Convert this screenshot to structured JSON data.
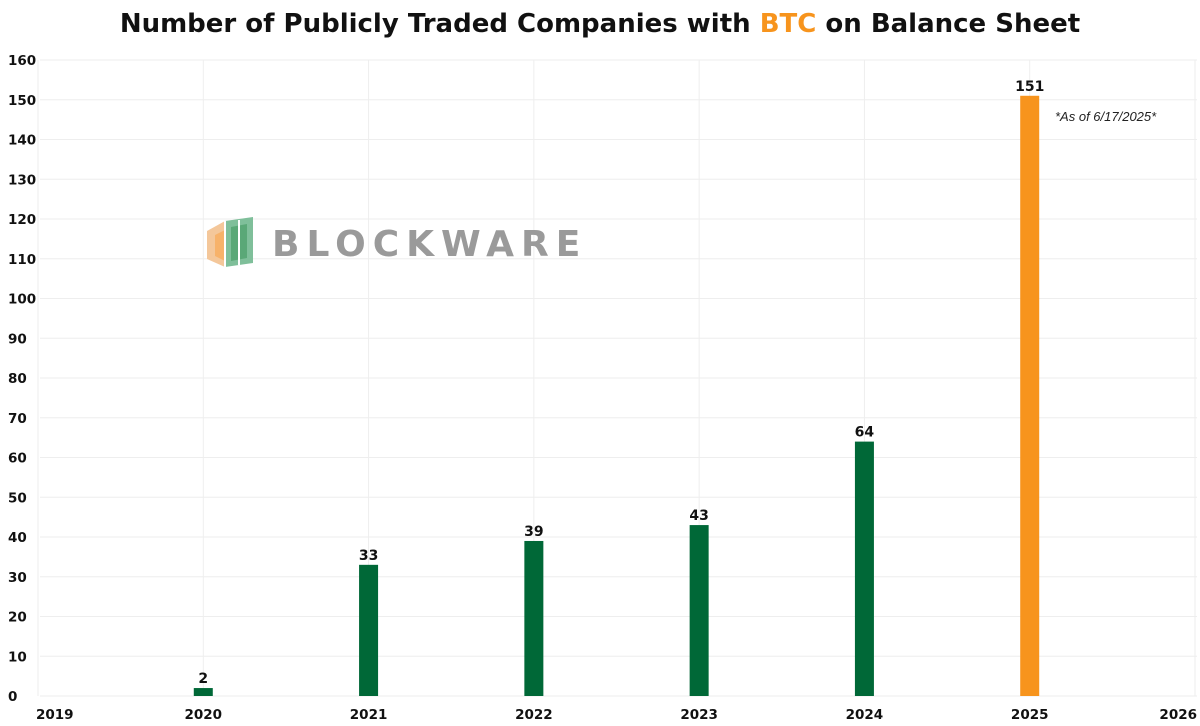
{
  "colors": {
    "bar": "#006837",
    "highlight": "#f7941d",
    "title": "#111111",
    "grid": "#eeeeee",
    "watermark_text": "#9a9a9a"
  },
  "watermark": {
    "text": "BLOCKWARE",
    "icon": "blockware-logo-icon"
  },
  "chart_data": {
    "type": "bar",
    "title_parts": [
      {
        "text": "Number of Publicly Traded Companies with ",
        "highlight": false
      },
      {
        "text": "BTC",
        "highlight": true
      },
      {
        "text": " on Balance Sheet",
        "highlight": false
      }
    ],
    "xlabel": "",
    "ylabel": "",
    "x_ticks": [
      "2019",
      "2020",
      "2021",
      "2022",
      "2023",
      "2024",
      "2025",
      "2026"
    ],
    "xlim": [
      2019,
      2026
    ],
    "ylim": [
      0,
      160
    ],
    "y_ticks": [
      0,
      10,
      20,
      30,
      40,
      50,
      60,
      70,
      80,
      90,
      100,
      110,
      120,
      130,
      140,
      150,
      160
    ],
    "grid": true,
    "legend": "none",
    "data_labels": true,
    "annotation": "*As of 6/17/2025*",
    "bars": [
      {
        "x": 2020,
        "value": 2,
        "highlight": false
      },
      {
        "x": 2021,
        "value": 33,
        "highlight": false
      },
      {
        "x": 2022,
        "value": 39,
        "highlight": false
      },
      {
        "x": 2023,
        "value": 43,
        "highlight": false
      },
      {
        "x": 2024,
        "value": 64,
        "highlight": false
      },
      {
        "x": 2025,
        "value": 151,
        "highlight": true
      }
    ]
  }
}
